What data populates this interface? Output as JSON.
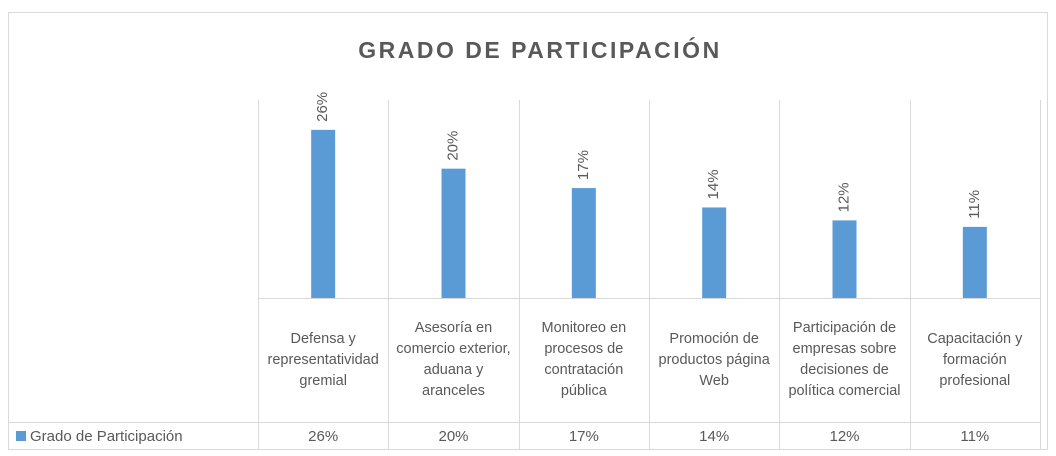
{
  "chart_data": {
    "type": "bar",
    "title": "GRADO DE PARTICIPACIÓN",
    "categories": [
      "Defensa y representatividad gremial",
      "Asesoría en comercio exterior, aduana y aranceles",
      "Monitoreo en procesos de contratación pública",
      "Promoción de productos página Web",
      "Participación de empresas sobre decisiones de política comercial",
      "Capacitación y formación profesional"
    ],
    "series": [
      {
        "name": "Grado de Participación",
        "color": "#5b9bd5",
        "values": [
          26,
          20,
          17,
          14,
          12,
          11
        ],
        "value_labels": [
          "26%",
          "20%",
          "17%",
          "14%",
          "12%",
          "11%"
        ]
      }
    ],
    "ylim": [
      0,
      30
    ],
    "grid": true
  }
}
